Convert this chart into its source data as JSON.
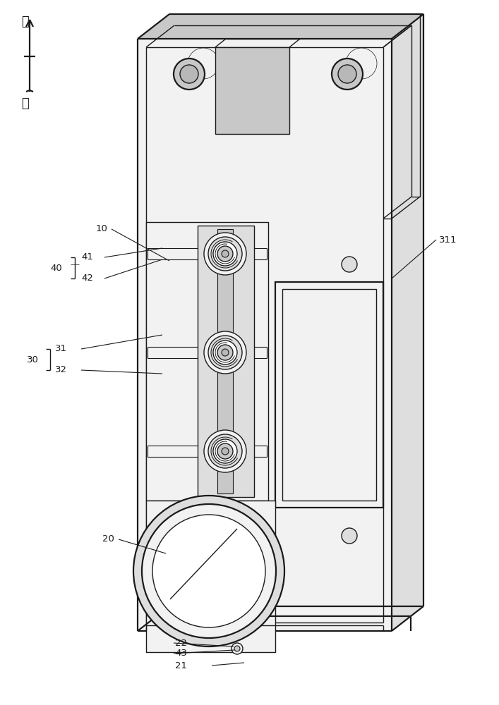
{
  "bg_color": "#ffffff",
  "lc": "#1a1a1a",
  "lw": 1.0,
  "lw2": 1.6,
  "fig_width": 7.07,
  "fig_height": 10.0,
  "labels": {
    "up": "上",
    "down": "下",
    "10": "10",
    "20": "20",
    "21": "21",
    "22": "22",
    "30": "30",
    "31": "31",
    "32": "32",
    "40": "40",
    "41": "41",
    "42": "42",
    "43": "43",
    "311": "311"
  },
  "gray_light": "#f2f2f2",
  "gray_mid": "#dedede",
  "gray_dark": "#c8c8c8",
  "gray_darker": "#b8b8b8"
}
